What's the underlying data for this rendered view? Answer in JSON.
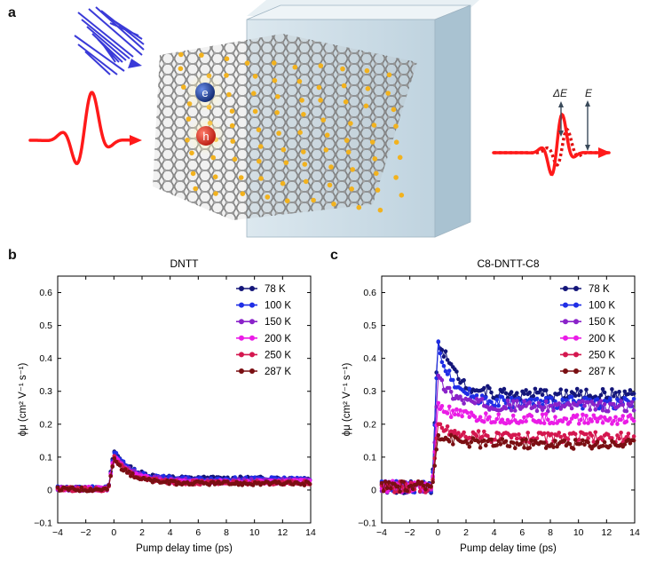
{
  "panel_letters": {
    "a": "a",
    "b": "b",
    "c": "c"
  },
  "schematic": {
    "electron_label": "e",
    "hole_label": "h",
    "delta_e_label": "ΔE",
    "e_label": "E",
    "colors": {
      "pump_pulse": "#3a3ad8",
      "thz_pulse": "#ff1a1a",
      "slab": "#cfe0ea",
      "sulfur": "#f2b21e",
      "carbon": "#8a8a8a"
    }
  },
  "chart_data": [
    {
      "type": "scatter",
      "title": "DNTT",
      "xlabel": "Pump delay time (ps)",
      "ylabel": "ϕμ (cm² V⁻¹ s⁻¹)",
      "xlim": [
        -4,
        14
      ],
      "ylim": [
        -0.1,
        0.65
      ],
      "xticks": [
        "−4",
        "−2",
        "0",
        "2",
        "4",
        "6",
        "8",
        "10",
        "12",
        "14"
      ],
      "yticks": [
        "−0.1",
        "0",
        "0.1",
        "0.2",
        "0.3",
        "0.4",
        "0.5",
        "0.6"
      ],
      "legend_position": "top-right",
      "series": [
        {
          "name": "78 K",
          "color": "#14167a",
          "baseline": 0.005,
          "peak": 0.12,
          "plateau": 0.035,
          "noise": 0.006
        },
        {
          "name": "100 K",
          "color": "#1f2ee6",
          "baseline": 0.005,
          "peak": 0.118,
          "plateau": 0.033,
          "noise": 0.006
        },
        {
          "name": "150 K",
          "color": "#8a22c9",
          "baseline": 0.004,
          "peak": 0.11,
          "plateau": 0.028,
          "noise": 0.006
        },
        {
          "name": "200 K",
          "color": "#ea1ce6",
          "baseline": 0.004,
          "peak": 0.105,
          "plateau": 0.025,
          "noise": 0.006
        },
        {
          "name": "250 K",
          "color": "#d4174f",
          "baseline": 0.003,
          "peak": 0.1,
          "plateau": 0.022,
          "noise": 0.006
        },
        {
          "name": "287 K",
          "color": "#7a0f12",
          "baseline": 0.003,
          "peak": 0.095,
          "plateau": 0.02,
          "noise": 0.006
        }
      ]
    },
    {
      "type": "scatter",
      "title": "C8-DNTT-C8",
      "xlabel": "Pump delay time (ps)",
      "ylabel": "ϕμ (cm² V⁻¹ s⁻¹)",
      "xlim": [
        -4,
        14
      ],
      "ylim": [
        -0.1,
        0.65
      ],
      "xticks": [
        "−4",
        "−2",
        "0",
        "2",
        "4",
        "6",
        "8",
        "10",
        "12",
        "14"
      ],
      "yticks": [
        "−0.1",
        "0",
        "0.1",
        "0.2",
        "0.3",
        "0.4",
        "0.5",
        "0.6"
      ],
      "legend_position": "top-right",
      "series": [
        {
          "name": "78 K",
          "color": "#14167a",
          "baseline": 0.01,
          "peak": 0.47,
          "plateau": 0.29,
          "noise": 0.018
        },
        {
          "name": "100 K",
          "color": "#1f2ee6",
          "baseline": 0.01,
          "peak": 0.44,
          "plateau": 0.265,
          "noise": 0.018
        },
        {
          "name": "150 K",
          "color": "#8a22c9",
          "baseline": 0.01,
          "peak": 0.34,
          "plateau": 0.255,
          "noise": 0.016
        },
        {
          "name": "200 K",
          "color": "#ea1ce6",
          "baseline": 0.01,
          "peak": 0.26,
          "plateau": 0.215,
          "noise": 0.016
        },
        {
          "name": "250 K",
          "color": "#d4174f",
          "baseline": 0.01,
          "peak": 0.2,
          "plateau": 0.16,
          "noise": 0.016
        },
        {
          "name": "287 K",
          "color": "#7a0f12",
          "baseline": 0.01,
          "peak": 0.17,
          "plateau": 0.14,
          "noise": 0.015
        }
      ]
    }
  ]
}
